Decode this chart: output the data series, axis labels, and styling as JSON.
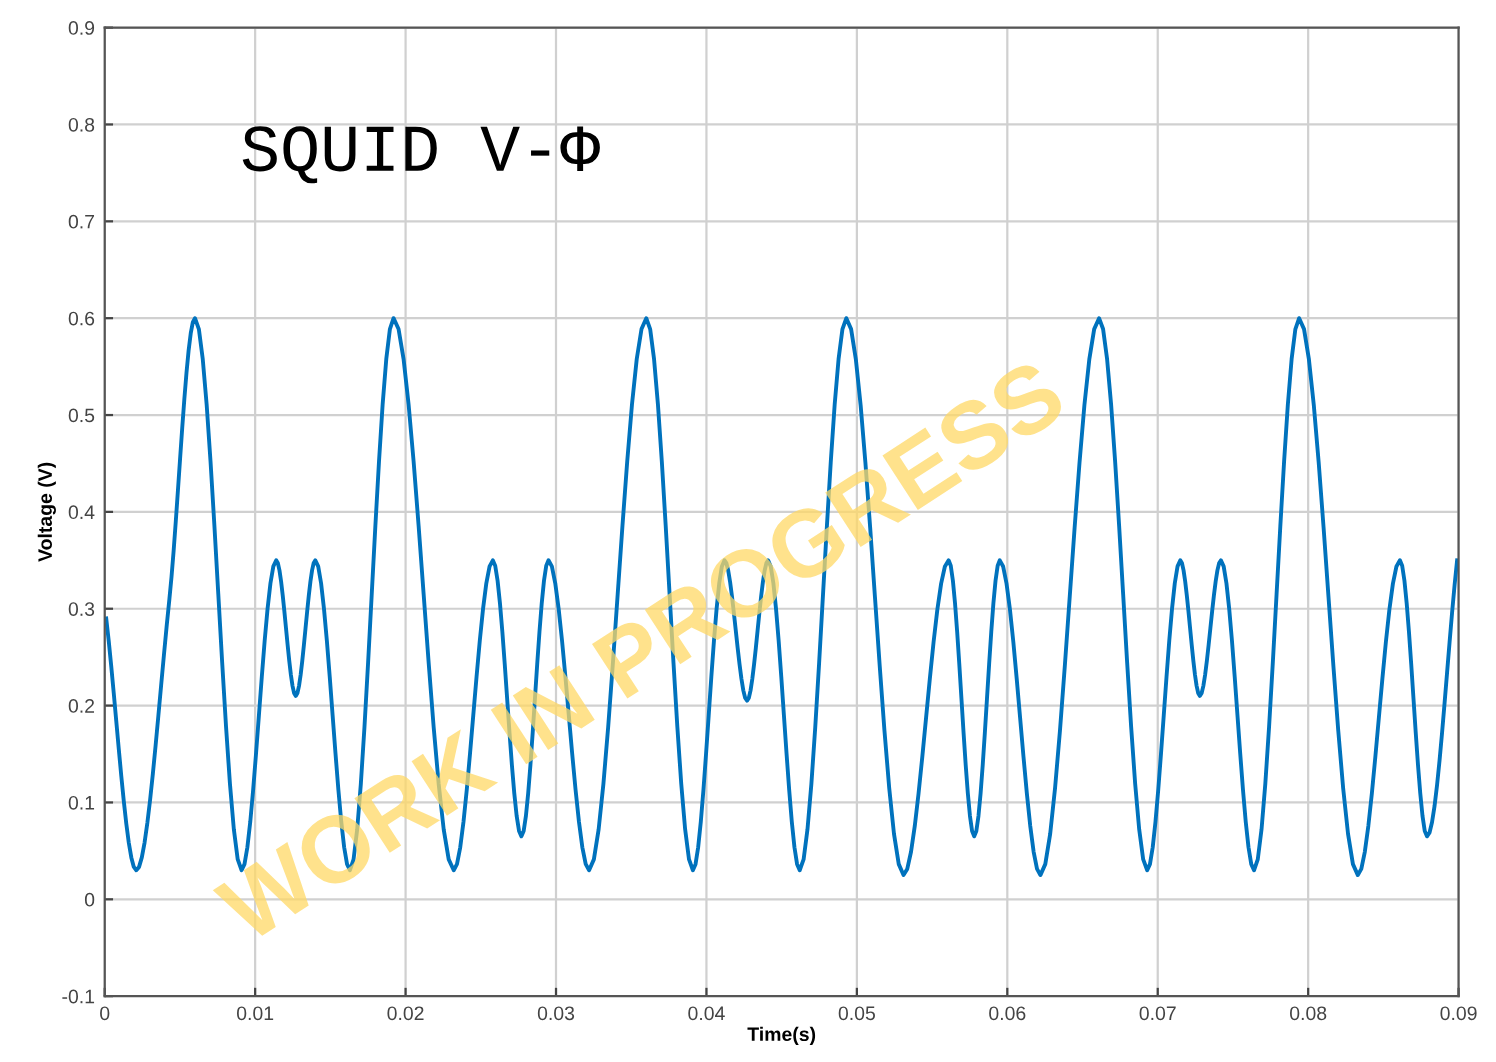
{
  "chart_data": {
    "type": "line",
    "title": "SQUID V-Φ",
    "xlabel": "Time(s)",
    "ylabel": "Voltage (V)",
    "annotations": [
      "WORK IN PROGRESS"
    ],
    "series": [
      {
        "color": "#0072bd",
        "x": [
          0.0001,
          0.0021,
          0.0043,
          0.006,
          0.0091,
          0.0114,
          0.0127,
          0.014,
          0.0163,
          0.0192,
          0.0232,
          0.0258,
          0.0277,
          0.0295,
          0.0322,
          0.036,
          0.0391,
          0.0412,
          0.0427,
          0.0441,
          0.0462,
          0.0493,
          0.0531,
          0.0561,
          0.0578,
          0.0595,
          0.0622,
          0.0661,
          0.0693,
          0.0715,
          0.0728,
          0.0742,
          0.0764,
          0.0794,
          0.0833,
          0.0861,
          0.0879,
          0.0899
        ],
        "values": [
          0.29,
          0.03,
          0.31,
          0.6,
          0.03,
          0.35,
          0.21,
          0.35,
          0.03,
          0.6,
          0.03,
          0.35,
          0.065,
          0.35,
          0.03,
          0.6,
          0.03,
          0.35,
          0.205,
          0.35,
          0.03,
          0.6,
          0.025,
          0.35,
          0.065,
          0.35,
          0.025,
          0.6,
          0.03,
          0.35,
          0.21,
          0.35,
          0.03,
          0.6,
          0.025,
          0.35,
          0.065,
          0.35
        ]
      }
    ],
    "xlim": [
      0,
      0.09
    ],
    "xticks": [
      0,
      0.01,
      0.02,
      0.03,
      0.04,
      0.05,
      0.06,
      0.07,
      0.08,
      0.09
    ],
    "ylim": [
      -0.1,
      0.9
    ],
    "yticks": [
      -0.1,
      0,
      0.1,
      0.2,
      0.3,
      0.4,
      0.5,
      0.6,
      0.7,
      0.8,
      0.9
    ],
    "grid": true,
    "legend": false,
    "marker": "none",
    "line_style": "solid"
  }
}
